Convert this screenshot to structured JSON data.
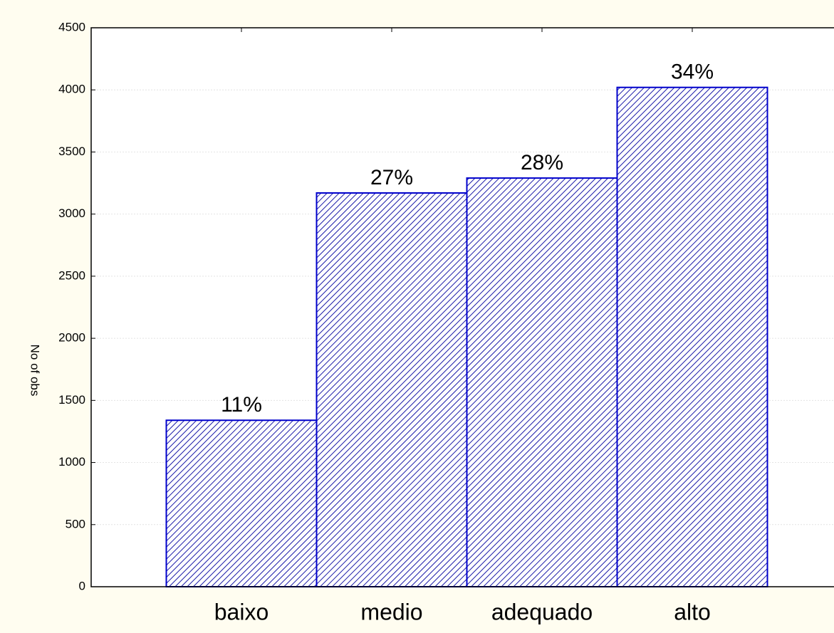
{
  "chart_data": {
    "type": "bar",
    "y_label": "No of obs",
    "categories": [
      "baixo",
      "medio",
      "adequado",
      "alto"
    ],
    "values": [
      1340,
      3170,
      3290,
      4020
    ],
    "annotations": [
      "11%",
      "27%",
      "28%",
      "34%"
    ],
    "color": "#0000cc",
    "ylim": [
      0,
      4500
    ],
    "yticks": [
      0,
      500,
      1000,
      1500,
      2000,
      2500,
      3000,
      3500,
      4000,
      4500
    ],
    "grid": true
  }
}
